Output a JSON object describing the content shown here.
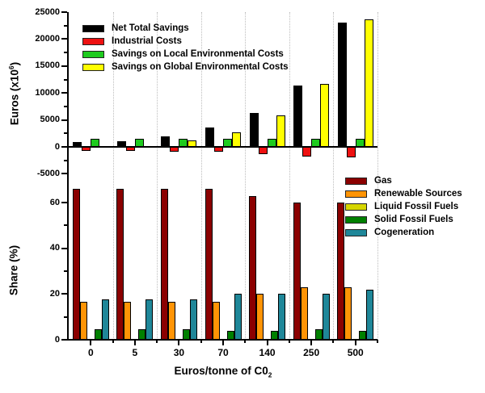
{
  "figure": {
    "background": "#ffffff",
    "grid_color": "#bdbdbd",
    "axis_color": "#000000"
  },
  "axes": {
    "top_ylabel": {
      "text": "Euros (x10",
      "sup": "6",
      "suffix": ")"
    },
    "bottom_ylabel": "Share (%)",
    "xlabel": {
      "text": "Euros/tonne of C0",
      "sub": "2"
    }
  },
  "chart_data": [
    {
      "type": "bar",
      "panel": "top",
      "title": "",
      "ylabel": "Euros (x10^6)",
      "ylim": [
        -5000,
        25000
      ],
      "yticks": [
        25000,
        20000,
        15000,
        10000,
        5000,
        0,
        -5000
      ],
      "grid": "vertical dotted",
      "legend_position": "top-left inside",
      "categories": [
        "0",
        "5",
        "30",
        "70",
        "140",
        "250",
        "500"
      ],
      "series": [
        {
          "name": "Net Total Savings",
          "color": "#000000",
          "values": [
            900,
            1100,
            2000,
            3600,
            6300,
            11400,
            23000
          ]
        },
        {
          "name": "Industrial Costs",
          "color": "#ee1111",
          "values": [
            -800,
            -800,
            -900,
            -900,
            -1300,
            -1800,
            -1900
          ]
        },
        {
          "name": "Savings on Local Environmental Costs",
          "color": "#1ecb1e",
          "values": [
            1500,
            1500,
            1500,
            1500,
            1450,
            1450,
            1450
          ]
        },
        {
          "name": "Savings on Global Environmental Costs",
          "color": "#ffff00",
          "values": [
            100,
            200,
            1200,
            2700,
            5900,
            11700,
            23600
          ]
        }
      ]
    },
    {
      "type": "bar",
      "panel": "bottom",
      "title": "",
      "xlabel": "Euros/tonne of C02",
      "ylabel": "Share (%)",
      "ylim": [
        0,
        70
      ],
      "yticks": [
        60,
        40,
        20,
        0
      ],
      "grid": "vertical dotted",
      "legend_position": "top-right inside",
      "categories": [
        "0",
        "5",
        "30",
        "70",
        "140",
        "250",
        "500"
      ],
      "series": [
        {
          "name": "Gas",
          "color": "#8b0000",
          "values": [
            66,
            66,
            66,
            66,
            63,
            60,
            60
          ]
        },
        {
          "name": "Renewable Sources",
          "color": "#ff9405",
          "values": [
            16.5,
            16.5,
            16.5,
            16.5,
            20,
            23,
            23
          ]
        },
        {
          "name": "Liquid Fossil Fuels",
          "color": "#d6d600",
          "values": [
            0.5,
            0.5,
            0.5,
            0.5,
            0.5,
            0.5,
            0.5
          ]
        },
        {
          "name": "Solid Fossil Fuels",
          "color": "#008000",
          "values": [
            4.5,
            4.5,
            4.5,
            4,
            4,
            4.5,
            4
          ]
        },
        {
          "name": "Cogeneration",
          "color": "#1f8799",
          "values": [
            17.5,
            17.5,
            17.5,
            20,
            20,
            20,
            22
          ]
        }
      ]
    }
  ]
}
